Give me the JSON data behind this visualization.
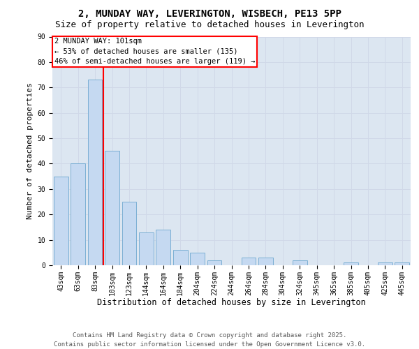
{
  "title_line1": "2, MUNDAY WAY, LEVERINGTON, WISBECH, PE13 5PP",
  "title_line2": "Size of property relative to detached houses in Leverington",
  "xlabel": "Distribution of detached houses by size in Leverington",
  "ylabel": "Number of detached properties",
  "categories": [
    "43sqm",
    "63sqm",
    "83sqm",
    "103sqm",
    "123sqm",
    "144sqm",
    "164sqm",
    "184sqm",
    "204sqm",
    "224sqm",
    "244sqm",
    "264sqm",
    "284sqm",
    "304sqm",
    "324sqm",
    "345sqm",
    "365sqm",
    "385sqm",
    "405sqm",
    "425sqm",
    "445sqm"
  ],
  "values": [
    35,
    40,
    73,
    45,
    25,
    13,
    14,
    6,
    5,
    2,
    0,
    3,
    3,
    0,
    2,
    0,
    0,
    1,
    0,
    1,
    1
  ],
  "bar_color": "#c5d9f1",
  "bar_edge_color": "#7bafd4",
  "vline_color": "red",
  "annotation_line1": "2 MUNDAY WAY: 101sqm",
  "annotation_line2": "← 53% of detached houses are smaller (135)",
  "annotation_line3": "46% of semi-detached houses are larger (119) →",
  "ylim_max": 90,
  "yticks": [
    0,
    10,
    20,
    30,
    40,
    50,
    60,
    70,
    80,
    90
  ],
  "grid_color": "#d0d8e8",
  "background_color": "#dce6f1",
  "footer_line1": "Contains HM Land Registry data © Crown copyright and database right 2025.",
  "footer_line2": "Contains public sector information licensed under the Open Government Licence v3.0.",
  "title_fontsize": 10,
  "subtitle_fontsize": 9,
  "ylabel_fontsize": 8,
  "xlabel_fontsize": 8.5,
  "tick_fontsize": 7,
  "annot_fontsize": 7.5,
  "footer_fontsize": 6.5
}
